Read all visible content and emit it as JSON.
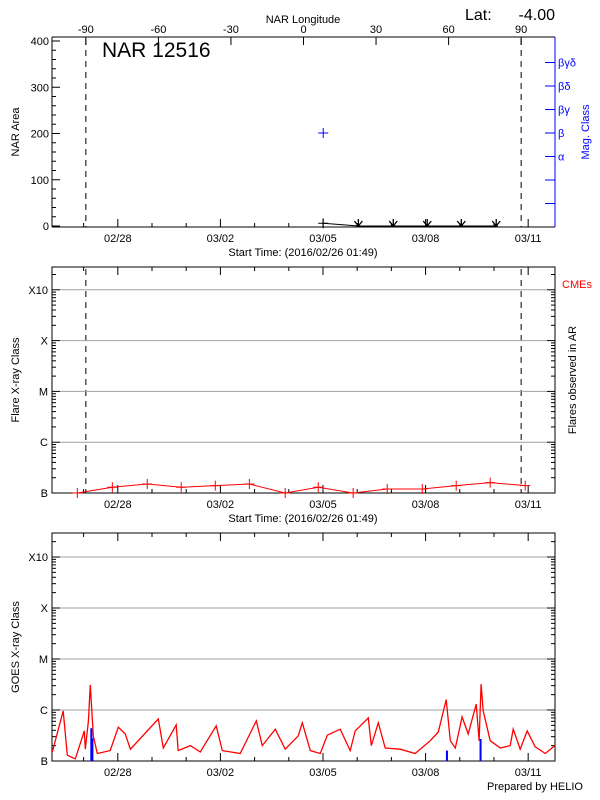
{
  "header": {
    "lat_label": "Lat:",
    "lat_value": "-4.00"
  },
  "footer": {
    "prepared_by": "Prepared by HELIO"
  },
  "colors": {
    "axis": "#000000",
    "mag_class": "#0000ff",
    "flare": "#ff0000",
    "cme": "#0000ff",
    "grid": "#a0a0a0"
  },
  "chart_data": [
    {
      "type": "scatter",
      "title": "NAR 12516",
      "ylabel": "NAR Area",
      "y2label": "Mag. Class",
      "xlabel": "Start Time: (2016/02/26 01:49)",
      "x_range": [
        "2016-02-26T01:49",
        "2016-03-11T18:50"
      ],
      "x_tick_labels": [
        "02/28",
        "03/02",
        "03/05",
        "03/08",
        "03/11"
      ],
      "ylim": [
        0,
        400
      ],
      "y_tick_labels": [
        "0",
        "100",
        "200",
        "300",
        "400"
      ],
      "y2_tick_labels": [
        "α",
        "β",
        "βγ",
        "βδ",
        "βγδ"
      ],
      "grid": false,
      "top_axis": {
        "label": "NAR Longitude",
        "range": [
          -104,
          104
        ],
        "tick_labels": [
          "-90",
          "-60",
          "-30",
          "0",
          "30",
          "60",
          "90"
        ]
      },
      "limb_longitudes": [
        -90,
        90
      ],
      "area_series": [
        {
          "t": "2016-03-05T00:10",
          "v": 6,
          "marker": "plus"
        },
        {
          "t": "2016-03-06T00:50",
          "v": 0,
          "marker": "arrow-down"
        },
        {
          "t": "2016-03-07T01:20",
          "v": 0,
          "marker": "arrow-down"
        },
        {
          "t": "2016-03-08T01:10",
          "v": 0,
          "marker": "arrow-down"
        },
        {
          "t": "2016-03-09T01:05",
          "v": 0,
          "marker": "arrow-down"
        },
        {
          "t": "2016-03-10T01:35",
          "v": 0,
          "marker": "arrow-down"
        }
      ],
      "mag_class_points": [
        {
          "t": "2016-03-05T00:10",
          "class": "β"
        }
      ]
    },
    {
      "type": "scatter",
      "ylabel": "Flare X-ray Class",
      "y2label": "Flares observed in AR",
      "legend": "CMEs",
      "xlabel": "Start Time: (2016/02/26 01:49)",
      "x_tick_labels": [
        "02/28",
        "03/02",
        "03/05",
        "03/08",
        "03/11"
      ],
      "y_tick_labels": [
        "B",
        "C",
        "M",
        "X",
        "X10"
      ],
      "grid": true,
      "flares": [
        {
          "t": "2016-02-26T19:35",
          "class": "B1.0"
        },
        {
          "t": "2016-02-27T20:10",
          "class": "B1.3"
        },
        {
          "t": "2016-02-28T20:40",
          "class": "B1.5"
        },
        {
          "t": "2016-02-29T20:30",
          "class": "B1.3"
        },
        {
          "t": "2016-03-01T20:25",
          "class": "B1.4"
        },
        {
          "t": "2016-03-02T20:20",
          "class": "B1.5"
        },
        {
          "t": "2016-03-03T21:30",
          "class": "B1.0"
        },
        {
          "t": "2016-03-04T20:40",
          "class": "B1.3"
        },
        {
          "t": "2016-03-05T21:10",
          "class": "B1.0"
        },
        {
          "t": "2016-03-06T21:05",
          "class": "B1.2"
        },
        {
          "t": "2016-03-07T21:40",
          "class": "B1.2"
        },
        {
          "t": "2016-03-08T21:30",
          "class": "B1.4"
        },
        {
          "t": "2016-03-09T21:20",
          "class": "B1.6"
        },
        {
          "t": "2016-03-10T21:55",
          "class": "B1.4"
        }
      ]
    },
    {
      "type": "line",
      "ylabel": "GOES X-ray Class",
      "x_tick_labels": [
        "02/28",
        "03/02",
        "03/05",
        "03/08",
        "03/11"
      ],
      "y_tick_labels": [
        "B",
        "C",
        "M",
        "X",
        "X10"
      ],
      "grid": true,
      "series": [
        [
          "2016-02-26T02:00",
          "B1.5"
        ],
        [
          "2016-02-26T09:40",
          "B9.6"
        ],
        [
          "2016-02-26T12:35",
          "B1.3"
        ],
        [
          "2016-02-26T18:10",
          "B1.1"
        ],
        [
          "2016-02-27T00:30",
          "B3.9"
        ],
        [
          "2016-02-27T01:10",
          "B1.7"
        ],
        [
          "2016-02-27T03:20",
          "B6.1"
        ],
        [
          "2016-02-27T04:40",
          "C3.1"
        ],
        [
          "2016-02-27T06:50",
          "B3.1"
        ],
        [
          "2016-02-27T09:35",
          "B1.4"
        ],
        [
          "2016-02-27T18:40",
          "B1.6"
        ],
        [
          "2016-02-28T00:20",
          "B4.6"
        ],
        [
          "2016-02-28T05:10",
          "B3.4"
        ],
        [
          "2016-02-28T08:50",
          "B1.7"
        ],
        [
          "2016-02-29T04:25",
          "B6.7"
        ],
        [
          "2016-02-29T07:55",
          "B1.8"
        ],
        [
          "2016-02-29T17:00",
          "B5.1"
        ],
        [
          "2016-02-29T18:25",
          "B1.6"
        ],
        [
          "2016-03-01T02:55",
          "B2.0"
        ],
        [
          "2016-03-01T09:55",
          "B1.5"
        ],
        [
          "2016-03-01T21:05",
          "B4.9"
        ],
        [
          "2016-03-02T01:20",
          "B1.6"
        ],
        [
          "2016-03-02T13:55",
          "B1.4"
        ],
        [
          "2016-03-03T01:10",
          "B6.1"
        ],
        [
          "2016-03-03T05:25",
          "B2.0"
        ],
        [
          "2016-03-03T14:30",
          "B4.2"
        ],
        [
          "2016-03-03T21:30",
          "B1.7"
        ],
        [
          "2016-03-04T06:35",
          "B3.1"
        ],
        [
          "2016-03-04T09:30",
          "B5.6"
        ],
        [
          "2016-03-04T15:05",
          "B1.6"
        ],
        [
          "2016-03-04T22:05",
          "B1.4"
        ],
        [
          "2016-03-05T03:00",
          "B3.2"
        ],
        [
          "2016-03-05T12:05",
          "B4.2"
        ],
        [
          "2016-03-05T19:05",
          "B1.6"
        ],
        [
          "2016-03-05T22:35",
          "B3.9"
        ],
        [
          "2016-03-06T07:50",
          "B7.0"
        ],
        [
          "2016-03-06T09:55",
          "B2.0"
        ],
        [
          "2016-03-06T14:50",
          "B5.6"
        ],
        [
          "2016-03-06T19:40",
          "B1.8"
        ],
        [
          "2016-03-07T06:10",
          "B1.7"
        ],
        [
          "2016-03-07T16:40",
          "B1.4"
        ],
        [
          "2016-03-08T03:20",
          "B2.5"
        ],
        [
          "2016-03-08T08:55",
          "B3.7"
        ],
        [
          "2016-03-08T14:30",
          "C1.6"
        ],
        [
          "2016-03-08T17:20",
          "B2.5"
        ],
        [
          "2016-03-08T20:50",
          "B1.8"
        ],
        [
          "2016-03-09T01:40",
          "B7.3"
        ],
        [
          "2016-03-09T05:55",
          "B3.4"
        ],
        [
          "2016-03-09T11:30",
          "C1.3"
        ],
        [
          "2016-03-09T13:35",
          "B2.5"
        ],
        [
          "2016-03-09T15:00",
          "C3.2"
        ],
        [
          "2016-03-09T16:25",
          "B9.6"
        ],
        [
          "2016-03-09T21:20",
          "B2.5"
        ],
        [
          "2016-03-10T04:25",
          "B1.8"
        ],
        [
          "2016-03-10T11:25",
          "B2.0"
        ],
        [
          "2016-03-10T13:30",
          "B4.2"
        ],
        [
          "2016-03-10T18:25",
          "B1.7"
        ],
        [
          "2016-03-10T23:20",
          "B3.9"
        ],
        [
          "2016-03-11T04:55",
          "B1.9"
        ],
        [
          "2016-03-11T12:00",
          "B1.4"
        ],
        [
          "2016-03-11T18:40",
          "B2.0"
        ]
      ],
      "cme_markers": [
        {
          "t": "2016-02-27T05:25",
          "level": "B4.4"
        },
        {
          "t": "2016-02-27T06:10",
          "level": "B2.8"
        },
        {
          "t": "2016-03-08T15:00",
          "level": "B1.6"
        },
        {
          "t": "2016-03-09T14:35",
          "level": "B2.7"
        }
      ]
    }
  ]
}
